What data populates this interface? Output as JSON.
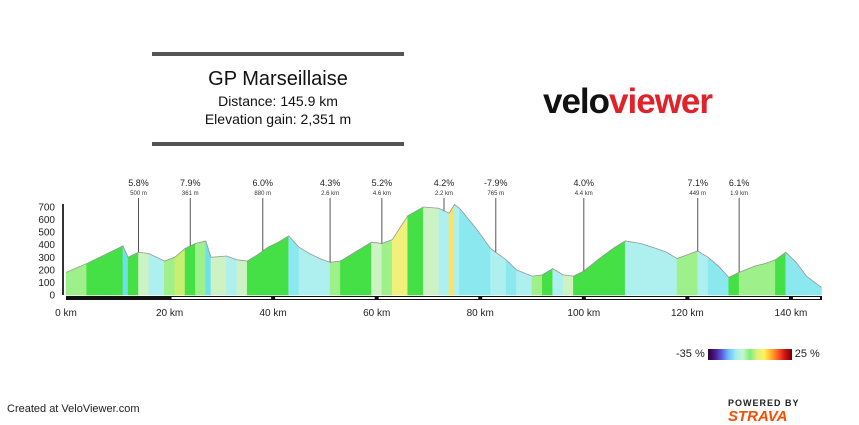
{
  "header": {
    "route_name": "GP Marseillaise",
    "distance": "Distance: 145.9 km",
    "elevation_gain": "Elevation gain: 2,351 m"
  },
  "logo": {
    "part1": "velo",
    "part2": "viewer"
  },
  "legend": {
    "min": "-35 %",
    "max": "25 %"
  },
  "footer": {
    "created": "Created at VeloViewer.com",
    "powered": "POWERED BY",
    "brand": "STRAVA"
  },
  "chart_data": {
    "type": "area",
    "xlabel": "",
    "ylabel": "",
    "xlim": [
      0,
      146
    ],
    "ylim": [
      0,
      700
    ],
    "x_ticks": [
      0,
      20,
      40,
      60,
      80,
      100,
      120,
      140
    ],
    "x_tick_labels": [
      "0 km",
      "20 km",
      "40 km",
      "60 km",
      "80 km",
      "100 km",
      "120 km",
      "140 km"
    ],
    "y_ticks": [
      0,
      100,
      200,
      300,
      400,
      500,
      600,
      700
    ],
    "y_tick_labels": [
      "0",
      "100",
      "200",
      "300",
      "400",
      "500",
      "600",
      "700"
    ],
    "profile": [
      [
        0,
        180
      ],
      [
        4,
        250
      ],
      [
        8,
        330
      ],
      [
        11,
        390
      ],
      [
        12,
        300
      ],
      [
        14,
        340
      ],
      [
        16,
        330
      ],
      [
        18,
        290
      ],
      [
        19,
        270
      ],
      [
        21,
        300
      ],
      [
        23,
        370
      ],
      [
        25,
        410
      ],
      [
        27,
        430
      ],
      [
        28,
        300
      ],
      [
        31,
        310
      ],
      [
        33,
        280
      ],
      [
        35,
        270
      ],
      [
        37,
        320
      ],
      [
        39,
        380
      ],
      [
        41,
        420
      ],
      [
        43,
        470
      ],
      [
        45,
        380
      ],
      [
        47,
        330
      ],
      [
        49,
        290
      ],
      [
        51,
        260
      ],
      [
        53,
        270
      ],
      [
        55,
        320
      ],
      [
        57,
        370
      ],
      [
        59,
        420
      ],
      [
        61,
        410
      ],
      [
        63,
        440
      ],
      [
        66,
        630
      ],
      [
        69,
        700
      ],
      [
        72,
        690
      ],
      [
        74,
        650
      ],
      [
        75,
        720
      ],
      [
        76,
        690
      ],
      [
        79,
        540
      ],
      [
        82,
        370
      ],
      [
        85,
        280
      ],
      [
        87,
        200
      ],
      [
        90,
        150
      ],
      [
        92,
        160
      ],
      [
        94,
        210
      ],
      [
        96,
        160
      ],
      [
        98,
        150
      ],
      [
        100,
        190
      ],
      [
        103,
        290
      ],
      [
        106,
        380
      ],
      [
        108,
        430
      ],
      [
        111,
        410
      ],
      [
        114,
        370
      ],
      [
        116,
        340
      ],
      [
        118,
        290
      ],
      [
        120,
        320
      ],
      [
        122,
        350
      ],
      [
        124,
        300
      ],
      [
        126,
        230
      ],
      [
        128,
        140
      ],
      [
        130,
        180
      ],
      [
        133,
        230
      ],
      [
        135,
        250
      ],
      [
        137,
        280
      ],
      [
        139,
        340
      ],
      [
        141,
        260
      ],
      [
        143,
        150
      ],
      [
        145.9,
        60
      ]
    ],
    "annotations": [
      {
        "km": 14,
        "grade": "5.8%",
        "length": "500 m"
      },
      {
        "km": 24,
        "grade": "7.9%",
        "length": "361 m"
      },
      {
        "km": 38,
        "grade": "6.0%",
        "length": "880 m"
      },
      {
        "km": 51,
        "grade": "4.3%",
        "length": "2.6 km"
      },
      {
        "km": 61,
        "grade": "5.2%",
        "length": "4.6 km"
      },
      {
        "km": 73,
        "grade": "4.2%",
        "length": "2.2 km"
      },
      {
        "km": 83,
        "grade": "-7.9%",
        "length": "765 m"
      },
      {
        "km": 100,
        "grade": "4.0%",
        "length": "4.4 km"
      },
      {
        "km": 122,
        "grade": "7.1%",
        "length": "449 m"
      },
      {
        "km": 130,
        "grade": "6.1%",
        "length": "1.9 km"
      }
    ]
  }
}
